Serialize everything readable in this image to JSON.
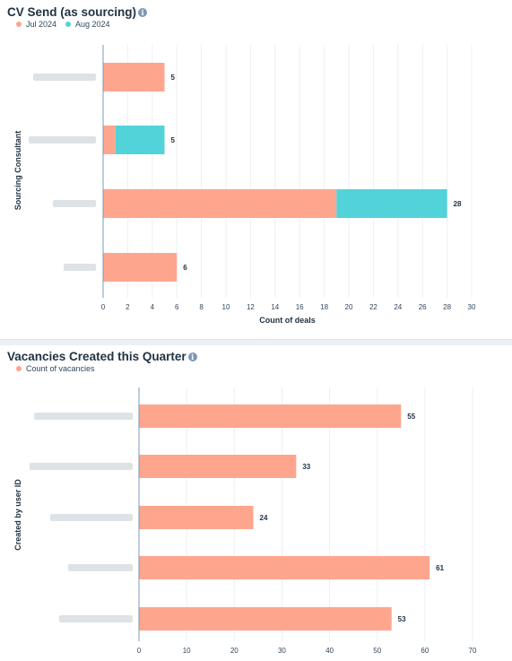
{
  "chart_data": [
    {
      "type": "bar",
      "orientation": "horizontal",
      "stacked": true,
      "title": "CV Send (as sourcing)",
      "legend": [
        "Jul 2024",
        "Aug 2024"
      ],
      "legend_position": "top-left",
      "categories": [
        "",
        "",
        "",
        ""
      ],
      "series": [
        {
          "name": "Jul 2024",
          "values": [
            5,
            1,
            19,
            6
          ],
          "color": "#fea58e"
        },
        {
          "name": "Aug 2024",
          "values": [
            0,
            4,
            9,
            0
          ],
          "color": "#51d3d9"
        }
      ],
      "totals": [
        5,
        5,
        28,
        6
      ],
      "xlabel": "Count of deals",
      "ylabel": "Sourcing Consultant",
      "xlim": [
        0,
        30
      ],
      "xticks": [
        0,
        2,
        4,
        6,
        8,
        10,
        12,
        14,
        16,
        18,
        20,
        22,
        24,
        26,
        28,
        30
      ],
      "grid": true
    },
    {
      "type": "bar",
      "orientation": "horizontal",
      "stacked": false,
      "title": "Vacancies Created this Quarter",
      "legend": [
        "Count of vacancies"
      ],
      "legend_position": "top-left",
      "categories": [
        "",
        "",
        "",
        "",
        ""
      ],
      "series": [
        {
          "name": "Count of vacancies",
          "values": [
            55,
            33,
            24,
            61,
            53
          ],
          "color": "#fea58e"
        }
      ],
      "totals": [
        55,
        33,
        24,
        61,
        53
      ],
      "xlabel": "",
      "ylabel": "Created by user ID",
      "xlim": [
        0,
        70
      ],
      "xticks": [
        0,
        10,
        20,
        30,
        40,
        50,
        60,
        70
      ],
      "grid": true
    }
  ],
  "colors": {
    "jul": "#fea58e",
    "aug": "#51d3d9",
    "axis": "#7c98b6",
    "grid": "#eaf0f6",
    "label_text": "#33475b",
    "title_text": "#213343"
  }
}
